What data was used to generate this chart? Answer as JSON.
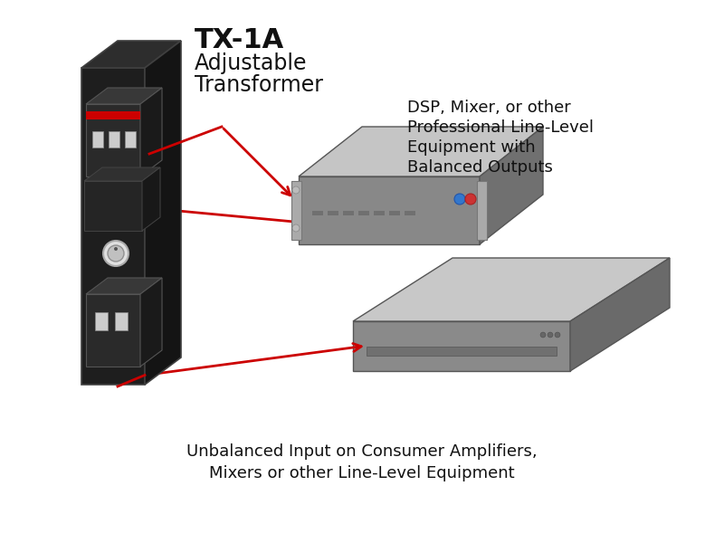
{
  "background_color": "#ffffff",
  "tx1a_label_line1": "TX-1A",
  "tx1a_label_line2": "Adjustable",
  "tx1a_label_line3": "Transformer",
  "dsp_label_line1": "DSP, Mixer, or other",
  "dsp_label_line2": "Professional Line-Level",
  "dsp_label_line3": "Equipment with",
  "dsp_label_line4": "Balanced Outputs",
  "amp_label_line1": "Unbalanced Input on Consumer Amplifiers,",
  "amp_label_line2": "Mixers or other Line-Level Equipment",
  "arrow_color": "#cc0000",
  "figsize": [
    8.0,
    6.0
  ],
  "dpi": 100,
  "tx1a_title_fontsize": 22,
  "tx1a_sub_fontsize": 17,
  "dsp_fontsize": 13,
  "amp_fontsize": 13
}
